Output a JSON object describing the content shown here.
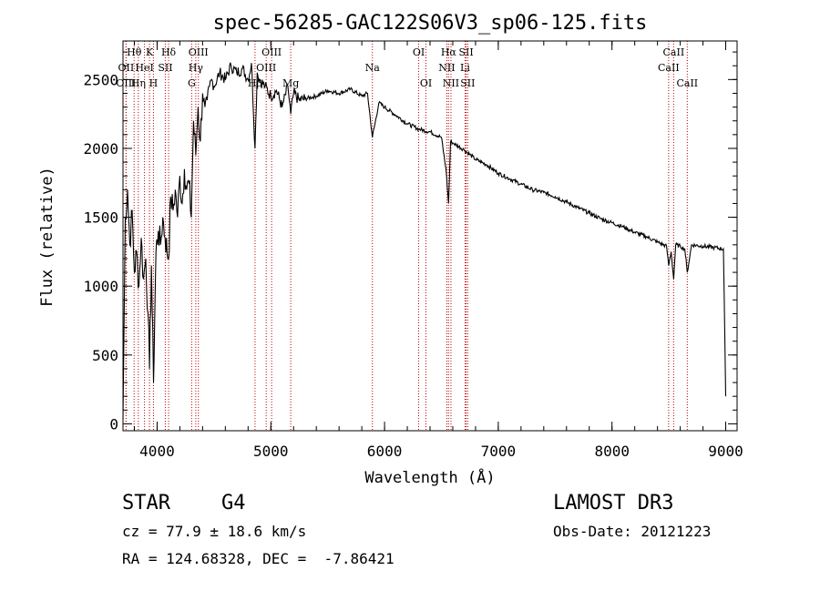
{
  "chart_data": {
    "type": "line",
    "title": "spec-56285-GAC122S06V3_sp06-125.fits",
    "xlabel": "Wavelength (Å)",
    "ylabel": "Flux (relative)",
    "xlim": [
      3700,
      9100
    ],
    "ylim": [
      -50,
      2780
    ],
    "xticks": [
      4000,
      5000,
      6000,
      7000,
      8000,
      9000
    ],
    "yticks": [
      0,
      500,
      1000,
      1500,
      2000,
      2500
    ],
    "spectrum": {
      "x": [
        3700,
        3720,
        3740,
        3760,
        3780,
        3800,
        3820,
        3840,
        3860,
        3880,
        3900,
        3920,
        3933,
        3950,
        3968,
        3990,
        4010,
        4030,
        4050,
        4070,
        4101,
        4120,
        4140,
        4160,
        4180,
        4200,
        4220,
        4240,
        4260,
        4280,
        4300,
        4320,
        4340,
        4360,
        4380,
        4400,
        4420,
        4440,
        4460,
        4480,
        4500,
        4550,
        4600,
        4650,
        4700,
        4750,
        4800,
        4830,
        4861,
        4880,
        4900,
        4950,
        5000,
        5050,
        5100,
        5150,
        5175,
        5200,
        5250,
        5300,
        5400,
        5500,
        5600,
        5700,
        5800,
        5850,
        5893,
        5950,
        6000,
        6100,
        6200,
        6300,
        6400,
        6500,
        6540,
        6563,
        6580,
        6600,
        6700,
        6800,
        6900,
        7000,
        7100,
        7200,
        7300,
        7400,
        7500,
        7600,
        7700,
        7800,
        7900,
        8000,
        8100,
        8200,
        8300,
        8400,
        8480,
        8498,
        8520,
        8542,
        8560,
        8600,
        8640,
        8662,
        8700,
        8800,
        8900,
        8980,
        9000
      ],
      "y": [
        30,
        1500,
        1700,
        1300,
        1550,
        1100,
        1250,
        1000,
        1350,
        1050,
        1200,
        800,
        400,
        1150,
        300,
        1250,
        1400,
        1300,
        1500,
        1350,
        1200,
        1650,
        1550,
        1700,
        1500,
        1800,
        1600,
        1850,
        1700,
        1750,
        1500,
        2200,
        1950,
        2300,
        2050,
        2400,
        2300,
        2350,
        2450,
        2500,
        2450,
        2550,
        2500,
        2600,
        2550,
        2580,
        2500,
        2620,
        2000,
        2550,
        2500,
        2450,
        2380,
        2420,
        2300,
        2450,
        2250,
        2400,
        2350,
        2360,
        2380,
        2420,
        2400,
        2430,
        2380,
        2400,
        2080,
        2330,
        2300,
        2240,
        2180,
        2140,
        2120,
        2080,
        1850,
        1600,
        2050,
        2040,
        1990,
        1920,
        1880,
        1820,
        1780,
        1740,
        1700,
        1680,
        1650,
        1610,
        1570,
        1530,
        1490,
        1460,
        1430,
        1390,
        1360,
        1320,
        1290,
        1150,
        1250,
        1050,
        1300,
        1290,
        1270,
        1100,
        1300,
        1290,
        1280,
        1270,
        200
      ]
    },
    "spectral_lines": [
      {
        "name": "Hθ",
        "wavelength": 3798,
        "row": 1
      },
      {
        "name": "OII",
        "wavelength": 3727,
        "row": 2
      },
      {
        "name": "OIII",
        "wavelength": 3727,
        "row": 3
      },
      {
        "name": "Hη",
        "wavelength": 3835,
        "row": 3
      },
      {
        "name": "K",
        "wavelength": 3933,
        "row": 1
      },
      {
        "name": "HeI",
        "wavelength": 3889,
        "row": 2
      },
      {
        "name": "H",
        "wavelength": 3968,
        "row": 3
      },
      {
        "name": "SII",
        "wavelength": 4072,
        "row": 2
      },
      {
        "name": "Hδ",
        "wavelength": 4101,
        "row": 1
      },
      {
        "name": "OIII",
        "wavelength": 4363,
        "row": 1
      },
      {
        "name": "Hγ",
        "wavelength": 4340,
        "row": 2
      },
      {
        "name": "G",
        "wavelength": 4304,
        "row": 3
      },
      {
        "name": "OIII",
        "wavelength": 5007,
        "row": 1
      },
      {
        "name": "OIII",
        "wavelength": 4959,
        "row": 2
      },
      {
        "name": "Hβ",
        "wavelength": 4861,
        "row": 3
      },
      {
        "name": "Mg",
        "wavelength": 5175,
        "row": 3
      },
      {
        "name": "Na",
        "wavelength": 5893,
        "row": 2
      },
      {
        "name": "OI",
        "wavelength": 6300,
        "row": 1
      },
      {
        "name": "OI",
        "wavelength": 6364,
        "row": 3
      },
      {
        "name": "Hα",
        "wavelength": 6563,
        "row": 1
      },
      {
        "name": "NII",
        "wavelength": 6548,
        "row": 2
      },
      {
        "name": "NII",
        "wavelength": 6584,
        "row": 3
      },
      {
        "name": "SII",
        "wavelength": 6717,
        "row": 1
      },
      {
        "name": "Li",
        "wavelength": 6708,
        "row": 2
      },
      {
        "name": "SII",
        "wavelength": 6731,
        "row": 3
      },
      {
        "name": "CaII",
        "wavelength": 8542,
        "row": 1
      },
      {
        "name": "CaII",
        "wavelength": 8498,
        "row": 2
      },
      {
        "name": "CaII",
        "wavelength": 8662,
        "row": 3
      }
    ]
  },
  "footer": {
    "object_type": "STAR",
    "subclass": "G4",
    "survey": "LAMOST DR3",
    "velocity": "cz = 77.9 ± 18.6 km/s",
    "obs_date": "Obs-Date: 20121223",
    "coordinates": "RA = 124.68328, DEC =  -7.86421"
  },
  "colors": {
    "line_marker": "#c00000",
    "spectrum": "#000000"
  }
}
